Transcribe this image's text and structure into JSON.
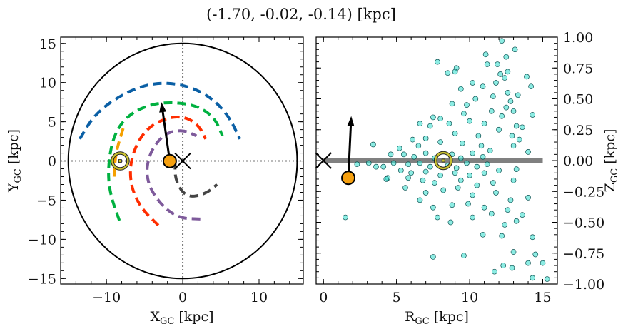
{
  "chart_data": [
    {
      "type": "line",
      "title": "(-1.70, -0.02, -0.14) [kpc]",
      "xlabel": "X",
      "xlabel_sub": "GC",
      "xlabel_unit": " [kpc]",
      "ylabel": "Y",
      "ylabel_sub": "GC",
      "ylabel_unit": " [kpc]",
      "xlim": [
        -16,
        15.8
      ],
      "ylim": [
        -15.7,
        15.8
      ],
      "xticks": [
        -10,
        0,
        10
      ],
      "yticks": [
        -15,
        -10,
        -5,
        0,
        5,
        10,
        15
      ],
      "boundary_circle_radius": 15,
      "series": [
        {
          "color": "#0a5fa5",
          "points": [
            [
              -13.5,
              2.8
            ],
            [
              -11.5,
              6
            ],
            [
              -8,
              8.5
            ],
            [
              -4,
              10
            ],
            [
              0,
              9.8
            ],
            [
              3.5,
              8.3
            ],
            [
              6,
              5.8
            ],
            [
              7.5,
              2.8
            ]
          ]
        },
        {
          "color": "#00b140",
          "points": [
            [
              -8.3,
              -7.6
            ],
            [
              -9.6,
              -4
            ],
            [
              -9.8,
              -0.5
            ],
            [
              -9,
              3.5
            ],
            [
              -7,
              6
            ],
            [
              -4,
              7.3
            ],
            [
              -1,
              7.5
            ],
            [
              2,
              7
            ],
            [
              4.2,
              5.5
            ],
            [
              5.2,
              3.2
            ]
          ]
        },
        {
          "color": "#f5a000",
          "points": [
            [
              -9,
              -2
            ],
            [
              -8.8,
              1
            ],
            [
              -7.7,
              4.5
            ]
          ]
        },
        {
          "color": "#ff2d00",
          "points": [
            [
              -3.2,
              -8.2
            ],
            [
              -5.5,
              -6
            ],
            [
              -6.9,
              -3
            ],
            [
              -6.8,
              0.5
            ],
            [
              -5,
              4
            ],
            [
              -2,
              5.6
            ],
            [
              0.5,
              5.6
            ],
            [
              2.2,
              4.4
            ],
            [
              3,
              2.8
            ]
          ]
        },
        {
          "color": "#7e5a9b",
          "points": [
            [
              2.3,
              -7.4
            ],
            [
              -0.5,
              -7.3
            ],
            [
              -3,
              -5.5
            ],
            [
              -4.8,
              -2.5
            ],
            [
              -4.5,
              0.8
            ],
            [
              -2.5,
              3.5
            ],
            [
              0,
              4
            ],
            [
              1.8,
              3.2
            ]
          ]
        },
        {
          "color": "#444444",
          "points": [
            [
              -1,
              0
            ],
            [
              -1,
              -2.5
            ],
            [
              0.5,
              -4.7
            ],
            [
              3,
              -4.2
            ],
            [
              4.5,
              -3
            ]
          ]
        }
      ],
      "sun": [
        -8.2,
        0
      ],
      "object": [
        -1.7,
        -0.02
      ],
      "arrow_tip": [
        -2.8,
        7.5
      ],
      "center_marker": [
        0,
        0
      ]
    },
    {
      "type": "scatter",
      "xlabel": "R",
      "xlabel_sub": "GC",
      "xlabel_unit": " [kpc]",
      "ylabel": "Z",
      "ylabel_sub": "GC",
      "ylabel_unit": " [kpc]",
      "xlim": [
        -0.5,
        16
      ],
      "ylim": [
        -1,
        1
      ],
      "xticks": [
        0,
        5,
        10,
        15
      ],
      "yticks": [
        -1.0,
        -0.75,
        -0.5,
        -0.25,
        0.0,
        0.25,
        0.5,
        0.75,
        1.0
      ],
      "ytick_labels": [
        "−1.00",
        "−0.75",
        "−0.50",
        "−0.25",
        "0.00",
        "0.25",
        "0.50",
        "0.75",
        "1.00"
      ],
      "disk_line": {
        "x": [
          0,
          15
        ],
        "z": 0,
        "color": "#808080"
      },
      "point_color": "#40e0d0",
      "sun": [
        8.2,
        0
      ],
      "object": [
        1.7,
        -0.14
      ],
      "arrow_tip": [
        1.9,
        0.36
      ],
      "center_marker": [
        0,
        0
      ],
      "points": [
        [
          12.2,
          0.97
        ],
        [
          13.1,
          0.9
        ],
        [
          11.1,
          0.86
        ],
        [
          12.5,
          0.84
        ],
        [
          11.2,
          0.78
        ],
        [
          11.9,
          0.78
        ],
        [
          7.8,
          0.8
        ],
        [
          9.1,
          0.75
        ],
        [
          9.0,
          0.72
        ],
        [
          8.5,
          0.71
        ],
        [
          12.6,
          0.72
        ],
        [
          13.9,
          0.68
        ],
        [
          12.1,
          0.7
        ],
        [
          12.4,
          0.67
        ],
        [
          10.2,
          0.63
        ],
        [
          11.8,
          0.63
        ],
        [
          14.2,
          0.6
        ],
        [
          9.4,
          0.58
        ],
        [
          10.9,
          0.6
        ],
        [
          12.6,
          0.55
        ],
        [
          13.3,
          0.53
        ],
        [
          11.6,
          0.52
        ],
        [
          10.4,
          0.5
        ],
        [
          12.8,
          0.48
        ],
        [
          9.8,
          0.45
        ],
        [
          12.5,
          0.43
        ],
        [
          13.0,
          0.4
        ],
        [
          8.8,
          0.46
        ],
        [
          9.6,
          0.38
        ],
        [
          11.5,
          0.4
        ],
        [
          12.2,
          0.36
        ],
        [
          14.3,
          0.37
        ],
        [
          7.5,
          0.35
        ],
        [
          8.0,
          0.34
        ],
        [
          6.6,
          0.3
        ],
        [
          7.3,
          0.28
        ],
        [
          8.6,
          0.3
        ],
        [
          10.0,
          0.32
        ],
        [
          11.0,
          0.3
        ],
        [
          13.2,
          0.28
        ],
        [
          13.6,
          0.27
        ],
        [
          12.0,
          0.25
        ],
        [
          9.0,
          0.22
        ],
        [
          10.6,
          0.2
        ],
        [
          12.9,
          0.2
        ],
        [
          13.4,
          0.17
        ],
        [
          6.1,
          0.17
        ],
        [
          7.0,
          0.18
        ],
        [
          3.4,
          0.13
        ],
        [
          5.2,
          0.1
        ],
        [
          6.5,
          0.12
        ],
        [
          8.0,
          0.15
        ],
        [
          9.5,
          0.14
        ],
        [
          10.8,
          0.12
        ],
        [
          13.0,
          0.12
        ],
        [
          14.0,
          0.07
        ],
        [
          4.6,
          0.05
        ],
        [
          5.5,
          0.05
        ],
        [
          6.2,
          0.03
        ],
        [
          7.0,
          0.06
        ],
        [
          7.6,
          0.02
        ],
        [
          8.8,
          0.05
        ],
        [
          9.4,
          0.02
        ],
        [
          10.2,
          0.06
        ],
        [
          10.9,
          0.03
        ],
        [
          11.4,
          0.08
        ],
        [
          4.8,
          -0.02
        ],
        [
          5.8,
          -0.03
        ],
        [
          6.6,
          -0.02
        ],
        [
          7.3,
          -0.05
        ],
        [
          8.5,
          -0.04
        ],
        [
          9.1,
          -0.06
        ],
        [
          9.8,
          -0.02
        ],
        [
          10.5,
          -0.05
        ],
        [
          11.2,
          -0.03
        ],
        [
          2.3,
          -0.03
        ],
        [
          3.1,
          -0.02
        ],
        [
          4.1,
          -0.05
        ],
        [
          5.3,
          -0.08
        ],
        [
          6.0,
          -0.1
        ],
        [
          7.0,
          -0.09
        ],
        [
          8.0,
          -0.12
        ],
        [
          9.0,
          -0.1
        ],
        [
          10.0,
          -0.12
        ],
        [
          11.0,
          -0.1
        ],
        [
          12.0,
          -0.08
        ],
        [
          13.2,
          -0.07
        ],
        [
          4.4,
          -0.14
        ],
        [
          5.8,
          -0.14
        ],
        [
          6.8,
          -0.16
        ],
        [
          7.6,
          -0.18
        ],
        [
          9.4,
          -0.16
        ],
        [
          10.5,
          -0.2
        ],
        [
          11.6,
          -0.18
        ],
        [
          13.0,
          -0.16
        ],
        [
          5.6,
          -0.22
        ],
        [
          7.0,
          -0.26
        ],
        [
          8.2,
          -0.24
        ],
        [
          9.2,
          -0.22
        ],
        [
          10.2,
          -0.28
        ],
        [
          11.8,
          -0.26
        ],
        [
          12.8,
          -0.32
        ],
        [
          14.0,
          -0.3
        ],
        [
          6.6,
          -0.32
        ],
        [
          7.5,
          -0.38
        ],
        [
          8.8,
          -0.36
        ],
        [
          9.9,
          -0.35
        ],
        [
          11.0,
          -0.38
        ],
        [
          12.6,
          -0.4
        ],
        [
          13.6,
          -0.44
        ],
        [
          7.8,
          -0.46
        ],
        [
          8.7,
          -0.5
        ],
        [
          10.2,
          -0.46
        ],
        [
          11.5,
          -0.43
        ],
        [
          12.4,
          -0.52
        ],
        [
          13.2,
          -0.49
        ],
        [
          12.2,
          -0.61
        ],
        [
          10.9,
          -0.6
        ],
        [
          14.3,
          -0.62
        ],
        [
          7.5,
          -0.78
        ],
        [
          9.6,
          -0.77
        ],
        [
          13.0,
          -0.74
        ],
        [
          14.0,
          -0.83
        ],
        [
          14.5,
          -0.76
        ],
        [
          12.3,
          -0.85
        ],
        [
          15.0,
          -0.83
        ],
        [
          11.7,
          -0.9
        ],
        [
          12.9,
          -0.87
        ],
        [
          14.3,
          -0.95
        ],
        [
          15.3,
          -0.96
        ],
        [
          1.5,
          -0.46
        ],
        [
          4.3,
          -0.15
        ],
        [
          3.6,
          -0.05
        ]
      ]
    }
  ]
}
